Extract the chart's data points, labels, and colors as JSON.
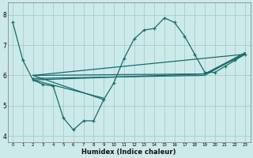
{
  "xlabel": "Humidex (Indice chaleur)",
  "bg_color": "#cceaea",
  "grid_color": "#aacccc",
  "line_color": "#1a6b6b",
  "xlim": [
    -0.5,
    23.5
  ],
  "ylim": [
    3.8,
    8.4
  ],
  "yticks": [
    4,
    5,
    6,
    7,
    8
  ],
  "xticks": [
    0,
    1,
    2,
    3,
    4,
    5,
    6,
    7,
    8,
    9,
    10,
    11,
    12,
    13,
    14,
    15,
    16,
    17,
    18,
    19,
    20,
    21,
    22,
    23
  ],
  "series_marked": {
    "x": [
      0,
      1,
      2,
      3,
      4,
      5,
      6,
      7,
      8,
      9,
      10,
      11,
      12,
      13,
      14,
      15,
      16,
      17,
      18,
      19,
      20,
      21,
      22,
      23
    ],
    "y": [
      7.75,
      6.5,
      5.85,
      5.7,
      5.65,
      4.6,
      4.2,
      4.5,
      4.5,
      5.2,
      5.75,
      6.55,
      7.2,
      7.5,
      7.55,
      7.9,
      7.75,
      7.3,
      6.7,
      6.1,
      6.1,
      6.3,
      6.5,
      6.7
    ]
  },
  "trend_lines": [
    {
      "x": [
        2,
        23
      ],
      "y": [
        6.0,
        6.7
      ]
    },
    {
      "x": [
        2,
        19,
        23
      ],
      "y": [
        6.0,
        6.05,
        6.7
      ]
    },
    {
      "x": [
        2,
        19,
        23
      ],
      "y": [
        5.9,
        6.0,
        6.75
      ]
    },
    {
      "x": [
        2,
        19,
        23
      ],
      "y": [
        5.85,
        6.05,
        6.75
      ]
    }
  ],
  "extra_lines": [
    {
      "x": [
        2,
        9
      ],
      "y": [
        6.0,
        5.2
      ]
    },
    {
      "x": [
        2,
        9
      ],
      "y": [
        5.85,
        5.25
      ]
    }
  ]
}
